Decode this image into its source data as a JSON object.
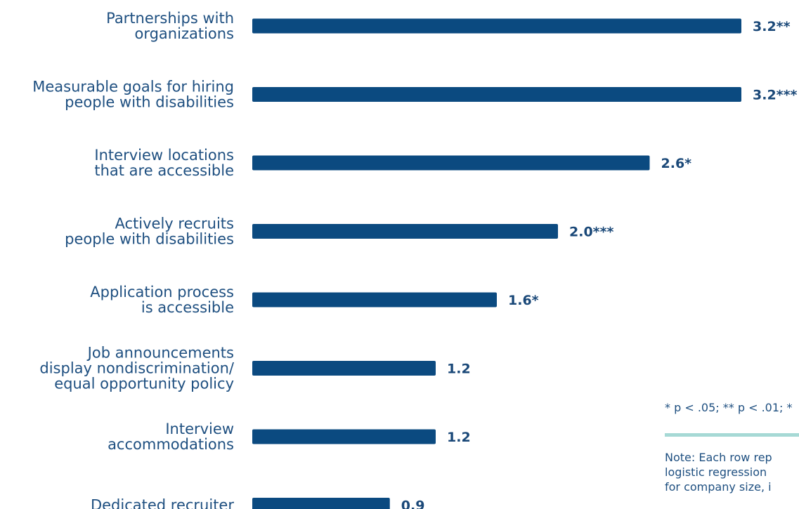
{
  "chart_data": {
    "type": "bar",
    "orientation": "horizontal",
    "categories": [
      [
        "Partnerships with",
        "organizations"
      ],
      [
        "Measurable goals for hiring",
        "people with disabilities"
      ],
      [
        "Interview locations",
        "that are accessible"
      ],
      [
        "Actively recruits",
        "people with disabilities"
      ],
      [
        "Application process",
        "is accessible"
      ],
      [
        "Job announcements",
        "display nondiscrimination/",
        "equal opportunity policy"
      ],
      [
        "Interview",
        "accommodations"
      ],
      [
        "Dedicated recruiter"
      ]
    ],
    "values": [
      3.2,
      3.2,
      2.6,
      2.0,
      1.6,
      1.2,
      1.2,
      0.9
    ],
    "value_labels": [
      "3.2**",
      "3.2***",
      "2.6*",
      "2.0***",
      "1.6*",
      "1.2",
      "1.2",
      "0.9"
    ],
    "xlim": [
      0,
      3.2
    ],
    "grid": false,
    "colors": {
      "bar": "#0b4a80",
      "label": "#1e4f80",
      "note_rule": "#a6d9d5"
    }
  },
  "footnote": "* p < .05; ** p < .01; *",
  "note_lines": [
    "Note: Each row rep",
    "logistic regression",
    "for company size, i"
  ]
}
